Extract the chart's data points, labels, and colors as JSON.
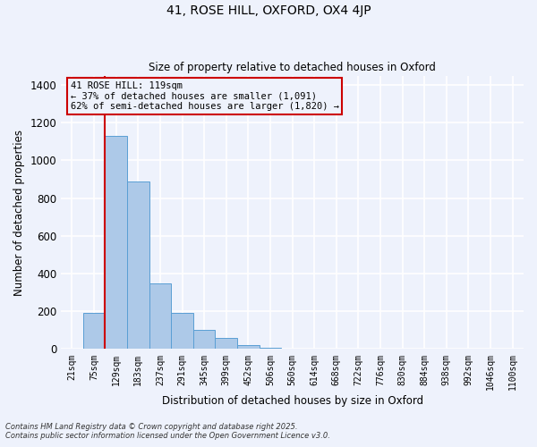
{
  "title1": "41, ROSE HILL, OXFORD, OX4 4JP",
  "title2": "Size of property relative to detached houses in Oxford",
  "xlabel": "Distribution of detached houses by size in Oxford",
  "ylabel": "Number of detached properties",
  "bar_color": "#adc9e8",
  "bar_edge_color": "#5a9fd4",
  "background_color": "#eef2fc",
  "grid_color": "#ffffff",
  "vline_color": "#cc0000",
  "vline_bar_index": 2,
  "annotation_text": "41 ROSE HILL: 119sqm\n← 37% of detached houses are smaller (1,091)\n62% of semi-detached houses are larger (1,820) →",
  "annotation_box_color": "#cc0000",
  "categories": [
    "21sqm",
    "75sqm",
    "129sqm",
    "183sqm",
    "237sqm",
    "291sqm",
    "345sqm",
    "399sqm",
    "452sqm",
    "506sqm",
    "560sqm",
    "614sqm",
    "668sqm",
    "722sqm",
    "776sqm",
    "830sqm",
    "884sqm",
    "938sqm",
    "992sqm",
    "1046sqm",
    "1100sqm"
  ],
  "values": [
    0,
    190,
    1130,
    890,
    350,
    190,
    100,
    60,
    20,
    5,
    2,
    2,
    1,
    0,
    1,
    0,
    1,
    0,
    0,
    0,
    0
  ],
  "ylim": [
    0,
    1450
  ],
  "yticks": [
    0,
    200,
    400,
    600,
    800,
    1000,
    1200,
    1400
  ],
  "footer1": "Contains HM Land Registry data © Crown copyright and database right 2025.",
  "footer2": "Contains public sector information licensed under the Open Government Licence v3.0."
}
